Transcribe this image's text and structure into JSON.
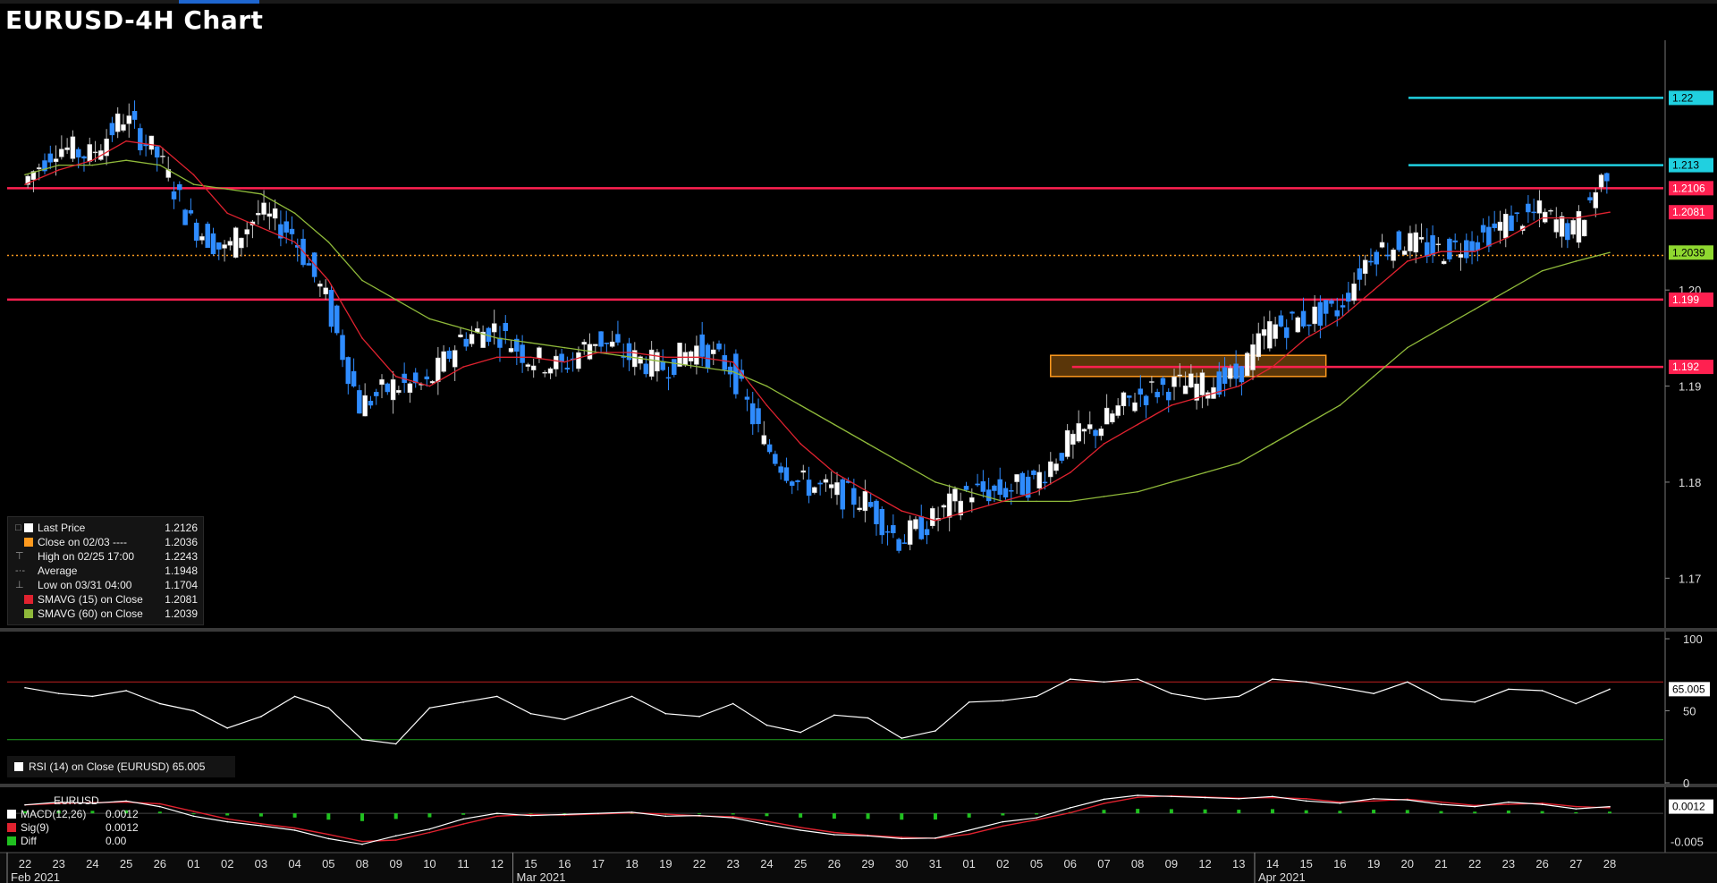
{
  "title": "EURUSD-4H Chart",
  "colors": {
    "up": "#ffffff",
    "down": "#2f8cff",
    "sma15": "#e0222f",
    "sma60": "#8fb93a",
    "resistance": "#ff2050",
    "target": "#20d0e0",
    "close_line": "#ff9a1e",
    "rsi": "#ffffff",
    "rsi_upper": "#c02020",
    "rsi_lower": "#20a020",
    "macd": "#ffffff",
    "signal": "#e0222f",
    "hist": "#20c020"
  },
  "legend": [
    {
      "mark": "□",
      "swatch": "#ffffff",
      "label": "Last Price",
      "value": "1.2126"
    },
    {
      "mark": "",
      "swatch": "#ff9a1e",
      "label": "Close on 02/03 ----",
      "value": "1.2036"
    },
    {
      "mark": "⊤",
      "swatch": "",
      "label": "High on 02/25 17:00",
      "value": "1.2243"
    },
    {
      "mark": "-·-",
      "swatch": "",
      "label": "Average",
      "value": "1.1948"
    },
    {
      "mark": "⊥",
      "swatch": "",
      "label": "Low on 03/31 04:00",
      "value": "1.1704"
    },
    {
      "mark": "",
      "swatch": "#e0222f",
      "label": "SMAVG (15)  on Close",
      "value": "1.2081"
    },
    {
      "mark": "",
      "swatch": "#8fb93a",
      "label": "SMAVG (60)  on Close",
      "value": "1.2039"
    }
  ],
  "rsi_legend": "RSI (14)  on Close (EURUSD) 65.005",
  "macd_legend": {
    "title": "EURUSD",
    "rows": [
      {
        "swatch": "#ffffff",
        "label": "MACD(12,26)",
        "value": "0.0012"
      },
      {
        "swatch": "#e0222f",
        "label": "Sig(9)",
        "value": "0.0012"
      },
      {
        "swatch": "#20c020",
        "label": "Diff",
        "value": "0.00"
      }
    ]
  },
  "axis": {
    "price_ticks": [
      {
        "label": "1.17",
        "value": 1.17
      },
      {
        "label": "1.18",
        "value": 1.18
      },
      {
        "label": "1.19",
        "value": 1.19
      },
      {
        "label": "1.20",
        "value": 1.2
      }
    ],
    "rsi_ticks": [
      {
        "label": "100",
        "value": 100
      },
      {
        "label": "50",
        "value": 50
      },
      {
        "label": "0",
        "value": 0
      }
    ],
    "macd_ticks": [
      {
        "label": "-0.005",
        "value": -0.005
      }
    ],
    "tags": [
      {
        "label": "1.22",
        "value": 1.22,
        "bg": "#20d0e0",
        "fg": "#000000"
      },
      {
        "label": "1.213",
        "value": 1.213,
        "bg": "#20d0e0",
        "fg": "#000000"
      },
      {
        "label": "1.2106",
        "value": 1.2106,
        "bg": "#ff2050",
        "fg": "#ffffff"
      },
      {
        "label": "1.2081",
        "value": 1.2081,
        "bg": "#ff2050",
        "fg": "#ffffff"
      },
      {
        "label": "1.2039",
        "value": 1.2039,
        "bg": "#8fd830",
        "fg": "#000000"
      },
      {
        "label": "1.199",
        "value": 1.199,
        "bg": "#ff2050",
        "fg": "#ffffff"
      },
      {
        "label": "1.192",
        "value": 1.192,
        "bg": "#ff2050",
        "fg": "#ffffff"
      }
    ],
    "rsi_tag": "65.005",
    "macd_tag": "0.0012",
    "date_labels": [
      "22",
      "23",
      "24",
      "25",
      "26",
      "01",
      "02",
      "03",
      "04",
      "05",
      "08",
      "09",
      "10",
      "11",
      "12",
      "15",
      "16",
      "17",
      "18",
      "19",
      "22",
      "23",
      "24",
      "25",
      "26",
      "29",
      "30",
      "31",
      "01",
      "02",
      "05",
      "06",
      "07",
      "08",
      "09",
      "12",
      "13",
      "14",
      "15",
      "16",
      "19",
      "20",
      "21",
      "22",
      "23",
      "26",
      "27",
      "28"
    ],
    "month_labels": [
      {
        "label": "Feb 2021",
        "date_index": 0
      },
      {
        "label": "Mar 2021",
        "date_index": 15
      },
      {
        "label": "Apr 2021",
        "date_index": 37
      }
    ]
  },
  "chart_data": {
    "type": "line",
    "title": "EURUSD-4H Chart",
    "instrument": "EURUSD",
    "x": [
      "22",
      "23",
      "24",
      "25",
      "26",
      "01",
      "02",
      "03",
      "04",
      "05",
      "08",
      "09",
      "10",
      "11",
      "12",
      "15",
      "16",
      "17",
      "18",
      "19",
      "22",
      "23",
      "24",
      "25",
      "26",
      "29",
      "30",
      "31",
      "01",
      "02",
      "05",
      "06",
      "07",
      "08",
      "09",
      "12",
      "13",
      "14",
      "15",
      "16",
      "19",
      "20",
      "21",
      "22",
      "23",
      "26",
      "27",
      "28"
    ],
    "ylim": [
      1.165,
      1.226
    ],
    "series": [
      {
        "name": "Last Price",
        "values": [
          1.211,
          1.215,
          1.214,
          1.218,
          1.214,
          1.207,
          1.204,
          1.208,
          1.206,
          1.199,
          1.188,
          1.19,
          1.19,
          1.195,
          1.196,
          1.193,
          1.192,
          1.195,
          1.193,
          1.192,
          1.194,
          1.192,
          1.184,
          1.18,
          1.179,
          1.178,
          1.174,
          1.176,
          1.179,
          1.179,
          1.18,
          1.184,
          1.186,
          1.189,
          1.19,
          1.19,
          1.191,
          1.196,
          1.197,
          1.198,
          1.204,
          1.205,
          1.204,
          1.205,
          1.207,
          1.208,
          1.206,
          1.2126
        ]
      },
      {
        "name": "SMAVG (15)  on Close",
        "values": [
          1.211,
          1.2125,
          1.2135,
          1.2155,
          1.215,
          1.212,
          1.208,
          1.2065,
          1.205,
          1.201,
          1.195,
          1.191,
          1.19,
          1.192,
          1.193,
          1.193,
          1.1925,
          1.1935,
          1.1935,
          1.193,
          1.193,
          1.1925,
          1.188,
          1.184,
          1.181,
          1.179,
          1.177,
          1.176,
          1.177,
          1.178,
          1.179,
          1.181,
          1.184,
          1.186,
          1.188,
          1.189,
          1.19,
          1.192,
          1.195,
          1.197,
          1.2,
          1.203,
          1.204,
          1.204,
          1.2055,
          1.2075,
          1.2075,
          1.2081
        ]
      },
      {
        "name": "SMAVG (60)  on Close",
        "values": [
          1.212,
          1.213,
          1.213,
          1.2135,
          1.213,
          1.211,
          1.2105,
          1.21,
          1.208,
          1.205,
          1.201,
          1.199,
          1.197,
          1.196,
          1.195,
          1.1945,
          1.194,
          1.1935,
          1.193,
          1.1925,
          1.192,
          1.1915,
          1.19,
          1.188,
          1.186,
          1.184,
          1.182,
          1.18,
          1.179,
          1.178,
          1.178,
          1.178,
          1.1785,
          1.179,
          1.18,
          1.181,
          1.182,
          1.184,
          1.186,
          1.188,
          1.191,
          1.194,
          1.196,
          1.198,
          1.2,
          1.202,
          1.203,
          1.2039
        ]
      }
    ],
    "levels": {
      "resistance": [
        1.2106,
        1.199,
        1.192
      ],
      "targets": [
        1.22,
        1.213
      ],
      "close_02_03": 1.2036,
      "zone": {
        "from_index": 31,
        "to_index": 38,
        "low": 1.191,
        "high": 1.1932
      }
    },
    "rsi": {
      "name": "RSI (14)  on Close (EURUSD)",
      "last": 65.005,
      "upper": 70,
      "lower": 30,
      "ylim": [
        0,
        100
      ],
      "values": [
        66,
        62,
        60,
        64,
        55,
        50,
        38,
        46,
        60,
        52,
        30,
        27,
        52,
        56,
        60,
        48,
        44,
        52,
        60,
        48,
        46,
        55,
        40,
        35,
        47,
        45,
        31,
        36,
        56,
        57,
        60,
        72,
        70,
        72,
        62,
        58,
        60,
        72,
        70,
        66,
        62,
        70,
        58,
        56,
        65,
        64,
        55,
        65
      ]
    },
    "macd": {
      "macd": 0.0012,
      "signal": 0.0012,
      "diff": 0.0,
      "ylim": [
        -0.0065,
        0.004
      ],
      "values": [
        0.0015,
        0.002,
        0.0018,
        0.0022,
        0.0012,
        -0.0005,
        -0.0015,
        -0.0022,
        -0.003,
        -0.0045,
        -0.0055,
        -0.004,
        -0.0028,
        -0.001,
        0.0,
        -0.0004,
        -0.0002,
        0.0,
        0.0002,
        -0.0005,
        -0.0004,
        -0.0008,
        -0.002,
        -0.003,
        -0.0038,
        -0.004,
        -0.0045,
        -0.0044,
        -0.003,
        -0.0015,
        -0.0008,
        0.001,
        0.0025,
        0.0032,
        0.003,
        0.0028,
        0.0026,
        0.003,
        0.0022,
        0.0018,
        0.0026,
        0.0024,
        0.0016,
        0.0012,
        0.002,
        0.0016,
        0.0008,
        0.0012
      ]
    }
  }
}
